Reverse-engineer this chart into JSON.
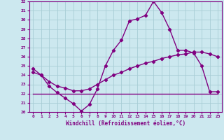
{
  "xlabel": "Windchill (Refroidissement éolien,°C)",
  "hours": [
    0,
    1,
    2,
    3,
    4,
    5,
    6,
    7,
    8,
    9,
    10,
    11,
    12,
    13,
    14,
    15,
    16,
    17,
    18,
    19,
    20,
    21,
    22,
    23
  ],
  "temp_line": [
    24.7,
    24.0,
    22.8,
    22.1,
    21.5,
    20.9,
    20.1,
    20.8,
    22.5,
    25.0,
    26.7,
    27.8,
    29.9,
    30.1,
    30.5,
    32.0,
    30.8,
    29.0,
    26.7,
    26.7,
    26.4,
    25.0,
    22.2,
    22.2
  ],
  "flat_line": [
    22.0,
    22.0,
    22.0,
    22.0,
    22.0,
    22.0,
    22.0,
    22.0,
    22.0,
    22.0,
    22.0,
    22.0,
    22.0,
    22.0,
    22.0,
    22.0,
    22.0,
    22.0,
    22.0,
    22.0,
    22.0,
    22.0,
    22.0,
    22.0
  ],
  "avg_line": [
    24.3,
    24.0,
    23.3,
    22.8,
    22.6,
    22.3,
    22.3,
    22.5,
    23.0,
    23.5,
    24.0,
    24.3,
    24.7,
    25.0,
    25.3,
    25.5,
    25.8,
    26.0,
    26.2,
    26.3,
    26.5,
    26.5,
    26.3,
    26.0
  ],
  "ylim": [
    20,
    32
  ],
  "yticks": [
    20,
    21,
    22,
    23,
    24,
    25,
    26,
    27,
    28,
    29,
    30,
    31,
    32
  ],
  "line_color": "#800080",
  "bg_color": "#cce8ef",
  "grid_color": "#a8cdd5",
  "marker": "D",
  "markersize": 2.2,
  "linewidth": 1.0
}
